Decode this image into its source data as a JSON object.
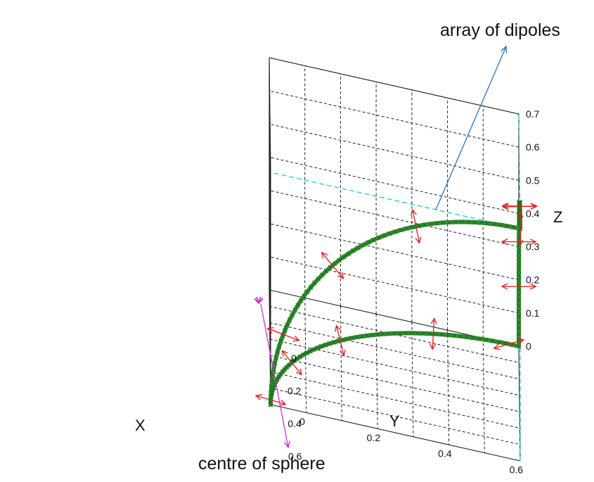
{
  "chart_data": {
    "type": "scatter",
    "projection": "3d",
    "xlabel": "X",
    "ylabel": "Y",
    "zlabel": "Z",
    "x_ticks": [
      "0",
      "0.2",
      "0.4",
      "0.6"
    ],
    "y_ticks": [
      "0",
      "0.2",
      "0.4",
      "0.6"
    ],
    "z_ticks": [
      "0",
      "0.1",
      "0.2",
      "0.3",
      "0.4",
      "0.5",
      "0.6",
      "0.7"
    ],
    "xlim": [
      0,
      0.7
    ],
    "ylim": [
      0,
      0.7
    ],
    "zlim": [
      0,
      0.7
    ],
    "grid": true,
    "sphere": {
      "radius": 0.7,
      "centre": [
        0.7,
        0.7,
        0
      ],
      "marker_color": "#2e8b2e",
      "arrow_color": "#e02020"
    },
    "centre_marker_color": "#cc33cc",
    "guide_line_color": "#22c8d8",
    "annotations": [
      {
        "text": "array of dipoles",
        "arrow_color": "#2b74b8"
      },
      {
        "text": "centre of sphere",
        "arrow_color": "#cc33cc"
      }
    ]
  }
}
